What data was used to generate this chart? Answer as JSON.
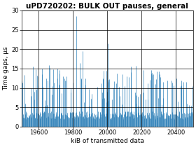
{
  "title": "uPD720202: BULK OUT pauses, general",
  "xlabel": "kiB of transmitted data",
  "ylabel": "Time gaps, µs",
  "xlim": [
    19500,
    20500
  ],
  "ylim": [
    0,
    30
  ],
  "xticks": [
    19600,
    19800,
    20000,
    20200,
    20400
  ],
  "yticks": [
    0,
    5,
    10,
    15,
    20,
    25,
    30
  ],
  "line_color": "#1f77b4",
  "bg_color": "#ffffff",
  "grid_color": "#000000",
  "title_fontsize": 7.5,
  "label_fontsize": 6.5,
  "tick_fontsize": 6,
  "seed": 42,
  "n_points": 400,
  "x_start": 19500,
  "x_end": 20500
}
